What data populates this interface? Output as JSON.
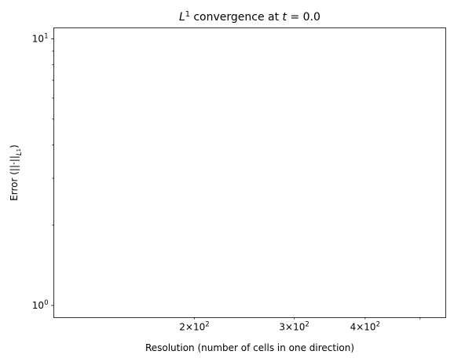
{
  "chart_data": {
    "type": "line",
    "title": "L¹ convergence at t = 0.0",
    "title_parts": {
      "L": "L",
      "sup": "1",
      "mid": " convergence at ",
      "t": "t",
      "eq": " = 0.0"
    },
    "xlabel": "Resolution (number of cells in one direction)",
    "ylabel": "Error (||·||L¹)",
    "ylabel_parts": {
      "main": "Error (||·||",
      "sub_L": "L",
      "sub_sup": "1",
      "close": ")"
    },
    "x_scale": "log",
    "y_scale": "log",
    "xlim": [
      113,
      555
    ],
    "ylim": [
      0.9,
      11
    ],
    "x_major_ticks": [],
    "x_minor_ticks": [
      {
        "value": 200,
        "base": "2×10",
        "exp": "2"
      },
      {
        "value": 300,
        "base": "3×10",
        "exp": "2"
      },
      {
        "value": 400,
        "base": "4×10",
        "exp": "2"
      },
      {
        "value": 500,
        "base": "",
        "exp": ""
      }
    ],
    "y_major_ticks": [
      {
        "value": 1,
        "base": "10",
        "exp": "0"
      },
      {
        "value": 10,
        "base": "10",
        "exp": "1"
      }
    ],
    "y_minor_ticks": [
      2,
      3,
      4,
      5,
      6,
      7,
      8,
      9
    ],
    "series": [],
    "grid": false,
    "legend": "none"
  }
}
